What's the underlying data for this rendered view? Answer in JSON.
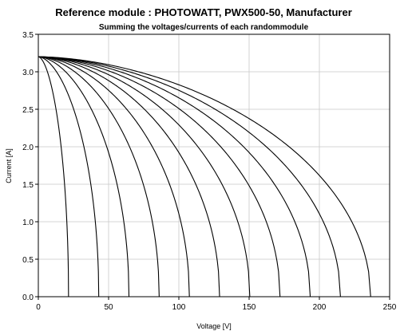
{
  "chart_data": {
    "type": "line",
    "title": "Reference module : PHOTOWATT, PWX500-50, Manufacturer",
    "subtitle": "Summing the voltages/currents of each  randommodule",
    "xlabel": "Voltage [V]",
    "ylabel": "Current [A]",
    "xlim": [
      0,
      250
    ],
    "ylim": [
      0,
      3.5
    ],
    "xticks": [
      0,
      50,
      100,
      150,
      200,
      250
    ],
    "yticks": [
      0.0,
      0.5,
      1.0,
      1.5,
      2.0,
      2.5,
      3.0,
      3.5
    ],
    "isc": 3.2,
    "series": [
      {
        "voc": 21.5,
        "knee": 14.5
      },
      {
        "voc": 43.0,
        "knee": 29.0
      },
      {
        "voc": 64.5,
        "knee": 43.5
      },
      {
        "voc": 86.0,
        "knee": 58.0
      },
      {
        "voc": 107.5,
        "knee": 72.5
      },
      {
        "voc": 129.0,
        "knee": 87.0
      },
      {
        "voc": 150.5,
        "knee": 101.5
      },
      {
        "voc": 172.0,
        "knee": 116.0
      },
      {
        "voc": 193.5,
        "knee": 130.5
      },
      {
        "voc": 215.0,
        "knee": 145.0
      },
      {
        "voc": 236.5,
        "knee": 159.5
      }
    ]
  }
}
